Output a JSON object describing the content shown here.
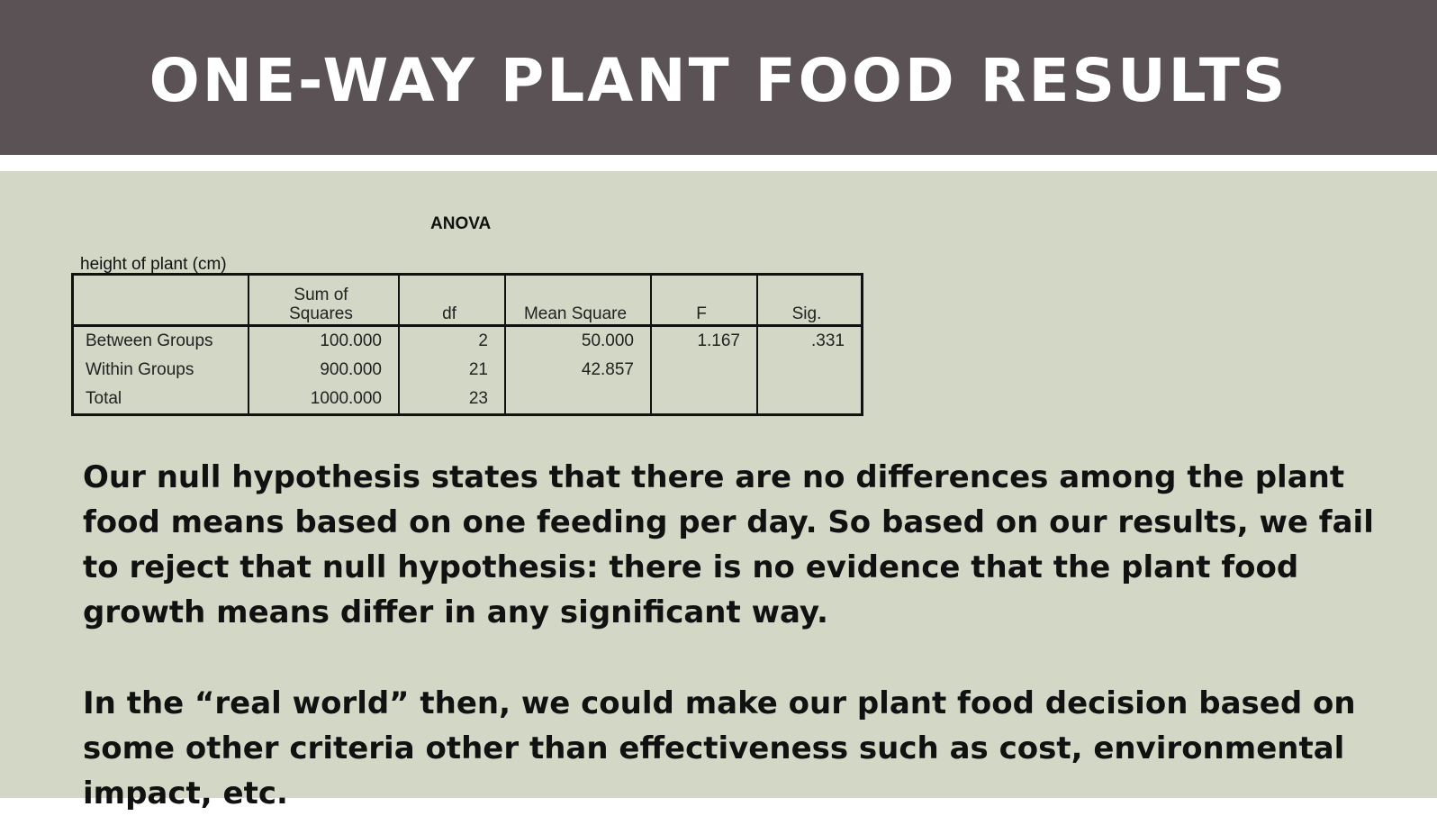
{
  "slide": {
    "title": "ONE-WAY PLANT FOOD RESULTS",
    "colors": {
      "title_bar": "#5a5254",
      "content_bg": "#d3d7c5",
      "title_text": "#ffffff"
    }
  },
  "anova": {
    "title": "ANOVA",
    "caption": "height of plant (cm)",
    "headers": {
      "rowhead": "",
      "sum_of_squares_line1": "Sum of",
      "sum_of_squares_line2": "Squares",
      "df": "df",
      "mean_square": "Mean Square",
      "f": "F",
      "sig": "Sig."
    },
    "rows": [
      {
        "label": "Between Groups",
        "ss": "100.000",
        "df": "2",
        "ms": "50.000",
        "f": "1.167",
        "sig": ".331"
      },
      {
        "label": "Within Groups",
        "ss": "900.000",
        "df": "21",
        "ms": "42.857",
        "f": "",
        "sig": ""
      },
      {
        "label": "Total",
        "ss": "1000.000",
        "df": "23",
        "ms": "",
        "f": "",
        "sig": ""
      }
    ]
  },
  "text": {
    "paragraph1": "Our null hypothesis states that there are no differences among the plant food means based on one feeding per day. So based on our results, we fail to reject that null hypothesis: there is no evidence that the plant food growth means differ in any significant way.",
    "paragraph2": "In the “real world” then, we could make our plant food decision based on some other criteria other than effectiveness such as cost, environmental impact, etc."
  }
}
